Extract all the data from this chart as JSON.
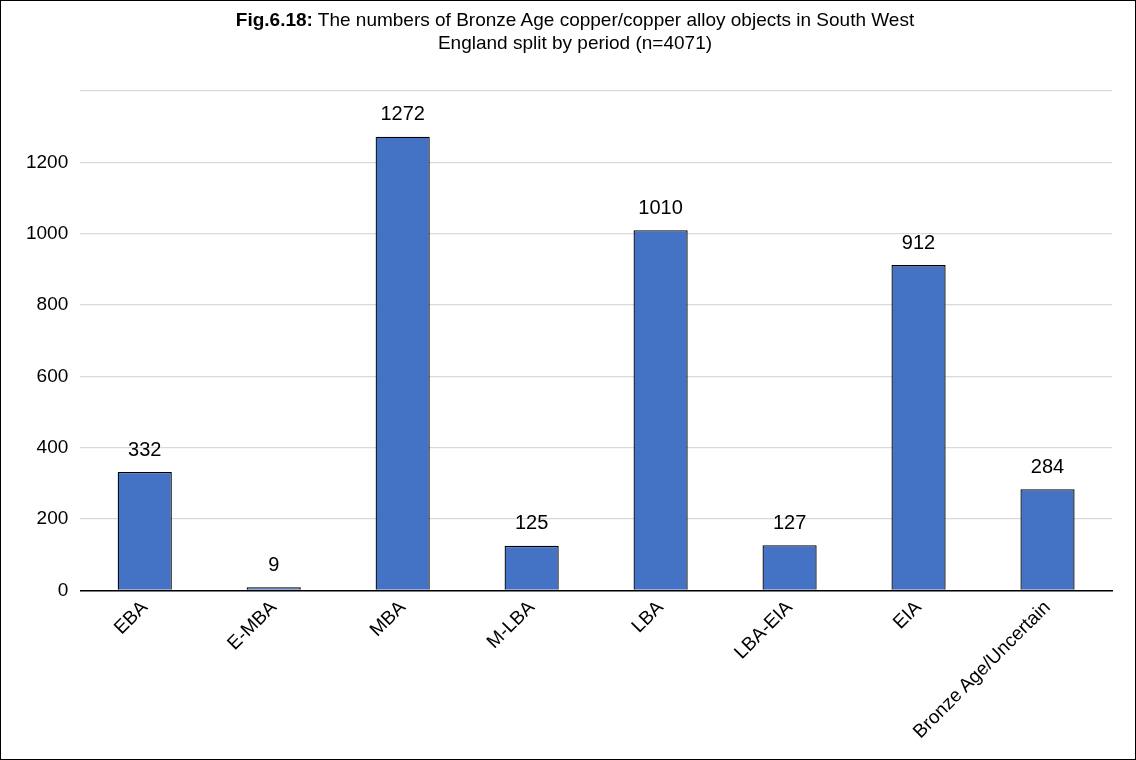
{
  "chart_data": {
    "type": "bar",
    "title": "Fig.6.18: The numbers of Bronze Age copper/copper alloy objects in South West England split by period (n=4071)",
    "categories": [
      "EBA",
      "E-MBA",
      "MBA",
      "M-LBA",
      "LBA",
      "LBA-EIA",
      "EIA",
      "Bronze Age/Uncertain"
    ],
    "values": [
      332,
      9,
      1272,
      125,
      1010,
      127,
      912,
      284
    ],
    "color": "#4472c4",
    "ylim": [
      0,
      1400
    ],
    "yticks": [
      0,
      200,
      400,
      600,
      800,
      1000,
      1200,
      {
        "value": 1400,
        "label": null
      }
    ],
    "grid": "y",
    "legend": false,
    "data_labels": true
  }
}
